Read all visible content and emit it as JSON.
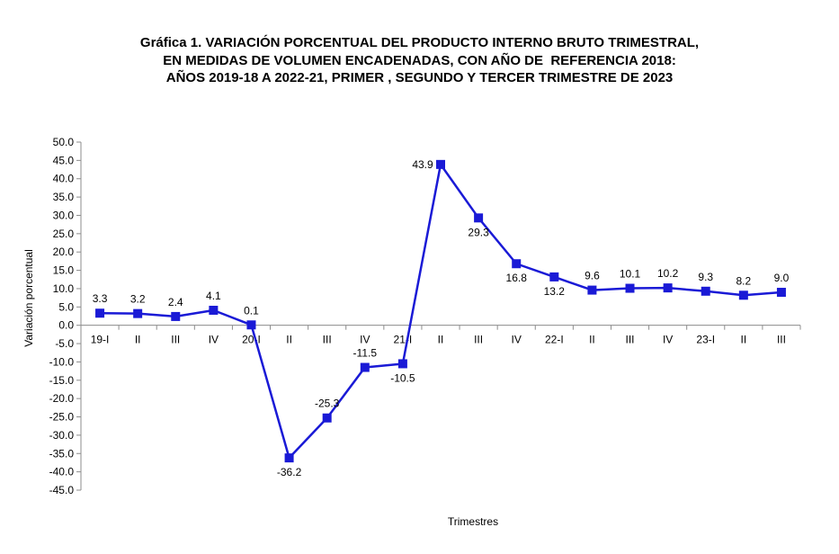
{
  "title_lines": [
    "Gráfica 1. VARIACIÓN PORCENTUAL DEL PRODUCTO INTERNO BRUTO TRIMESTRAL,",
    "EN MEDIDAS DE VOLUMEN ENCADENADAS, CON AÑO DE  REFERENCIA 2018:",
    "AÑOS 2019-18 A 2022-21, PRIMER , SEGUNDO Y TERCER TRIMESTRE DE 2023"
  ],
  "chart_data": {
    "type": "line",
    "title": "Gráfica 1. VARIACIÓN PORCENTUAL DEL PRODUCTO INTERNO BRUTO TRIMESTRAL, EN MEDIDAS DE VOLUMEN ENCADENADAS, CON AÑO DE  REFERENCIA 2018: AÑOS 2019-18 A 2022-21, PRIMER , SEGUNDO Y TERCER TRIMESTRE DE 2023",
    "xlabel": "Trimestres",
    "ylabel": "Variación porcentual",
    "ylim": [
      -45,
      50
    ],
    "ytick_step": 5,
    "ytick_labels": [
      "50.0",
      "45.0",
      "40.0",
      "35.0",
      "30.0",
      "25.0",
      "20.0",
      "15.0",
      "10.0",
      "5.0",
      "0.0",
      "-5.0",
      "-10.0",
      "-15.0",
      "-20.0",
      "-25.0",
      "-30.0",
      "-35.0",
      "-40.0",
      "-45.0"
    ],
    "categories": [
      "19-I",
      "II",
      "III",
      "IV",
      "20-I",
      "II",
      "III",
      "IV",
      "21-I",
      "II",
      "III",
      "IV",
      "22-I",
      "II",
      "III",
      "IV",
      "23-I",
      "II",
      "III"
    ],
    "values": [
      3.3,
      3.2,
      2.4,
      4.1,
      0.1,
      -36.2,
      -25.3,
      -11.5,
      -10.5,
      43.9,
      29.3,
      16.8,
      13.2,
      9.6,
      10.1,
      10.2,
      9.3,
      8.2,
      9.0
    ],
    "data_labels": [
      "3.3",
      "3.2",
      "2.4",
      "4.1",
      "0.1",
      "-36.2",
      "-25.3",
      "-11.5",
      "-10.5",
      "43.9",
      "29.3",
      "16.8",
      "13.2",
      "9.6",
      "10.1",
      "10.2",
      "9.3",
      "8.2",
      "9.0"
    ],
    "grid": false,
    "legend": "none",
    "line_color": "#1a1ad6",
    "marker": "square"
  }
}
